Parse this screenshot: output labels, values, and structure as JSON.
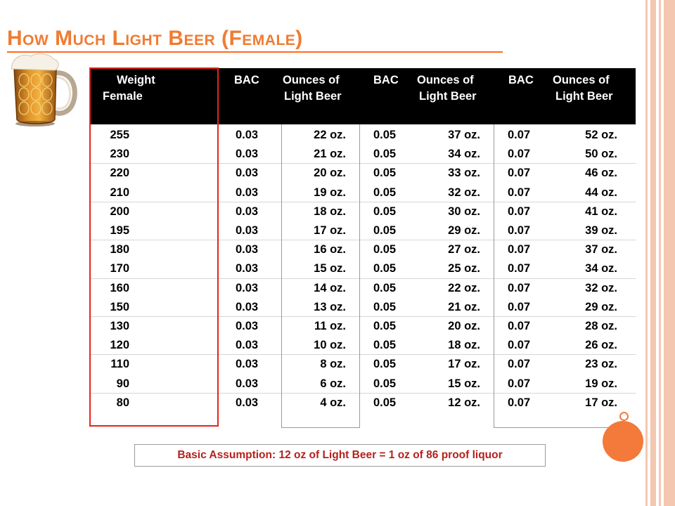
{
  "title": "How Much Light Beer (Female)",
  "headers": {
    "weight": [
      "Weight",
      "Female"
    ],
    "bac1": "BAC",
    "oz1": [
      "Ounces of",
      "Light Beer"
    ],
    "bac2": "BAC",
    "oz2": [
      "Ounces of",
      "Light Beer"
    ],
    "bac3": "BAC",
    "oz3": [
      "Ounces of",
      "Light Beer"
    ]
  },
  "rows": [
    {
      "weight": "255",
      "bac1": "0.03",
      "oz1": "22 oz.",
      "bac2": "0.05",
      "oz2": "37 oz.",
      "bac3": "0.07",
      "oz3": "52 oz."
    },
    {
      "weight": "230",
      "bac1": "0.03",
      "oz1": "21 oz.",
      "bac2": "0.05",
      "oz2": "34 oz.",
      "bac3": "0.07",
      "oz3": "50 oz."
    },
    {
      "weight": "220",
      "bac1": "0.03",
      "oz1": "20 oz.",
      "bac2": "0.05",
      "oz2": "33 oz.",
      "bac3": "0.07",
      "oz3": "46 oz."
    },
    {
      "weight": "210",
      "bac1": "0.03",
      "oz1": "19 oz.",
      "bac2": "0.05",
      "oz2": "32 oz.",
      "bac3": "0.07",
      "oz3": "44 oz."
    },
    {
      "weight": "200",
      "bac1": "0.03",
      "oz1": "18 oz.",
      "bac2": "0.05",
      "oz2": "30 oz.",
      "bac3": "0.07",
      "oz3": "41 oz."
    },
    {
      "weight": "195",
      "bac1": "0.03",
      "oz1": "17 oz.",
      "bac2": "0.05",
      "oz2": "29 oz.",
      "bac3": "0.07",
      "oz3": "39 oz."
    },
    {
      "weight": "180",
      "bac1": "0.03",
      "oz1": "16 oz.",
      "bac2": "0.05",
      "oz2": "27 oz.",
      "bac3": "0.07",
      "oz3": "37 oz."
    },
    {
      "weight": "170",
      "bac1": "0.03",
      "oz1": "15 oz.",
      "bac2": "0.05",
      "oz2": "25 oz.",
      "bac3": "0.07",
      "oz3": "34 oz."
    },
    {
      "weight": "160",
      "bac1": "0.03",
      "oz1": "14 oz.",
      "bac2": "0.05",
      "oz2": "22 oz.",
      "bac3": "0.07",
      "oz3": "32 oz."
    },
    {
      "weight": "150",
      "bac1": "0.03",
      "oz1": "13 oz.",
      "bac2": "0.05",
      "oz2": "21 oz.",
      "bac3": "0.07",
      "oz3": "29 oz."
    },
    {
      "weight": "130",
      "bac1": "0.03",
      "oz1": "11 oz.",
      "bac2": "0.05",
      "oz2": "20 oz.",
      "bac3": "0.07",
      "oz3": "28 oz."
    },
    {
      "weight": "120",
      "bac1": "0.03",
      "oz1": "10 oz.",
      "bac2": "0.05",
      "oz2": "18 oz.",
      "bac3": "0.07",
      "oz3": "26 oz."
    },
    {
      "weight": "110",
      "bac1": "0.03",
      "oz1": "8 oz.",
      "bac2": "0.05",
      "oz2": "17 oz.",
      "bac3": "0.07",
      "oz3": "23 oz."
    },
    {
      "weight": "90",
      "bac1": "0.03",
      "oz1": "6 oz.",
      "bac2": "0.05",
      "oz2": "15 oz.",
      "bac3": "0.07",
      "oz3": "19 oz."
    },
    {
      "weight": "80",
      "bac1": "0.03",
      "oz1": "4 oz.",
      "bac2": "0.05",
      "oz2": "12 oz.",
      "bac3": "0.07",
      "oz3": "17 oz."
    }
  ],
  "footnote": "Basic Assumption:  12 oz of Light Beer = 1 oz of 86 proof liquor",
  "icons": {
    "mug": "beer-mug-icon"
  },
  "colors": {
    "title": "#f07b32",
    "highlight_box": "#e8221c",
    "footnote_text": "#b5211c",
    "accent_circle": "#f37a3a"
  }
}
